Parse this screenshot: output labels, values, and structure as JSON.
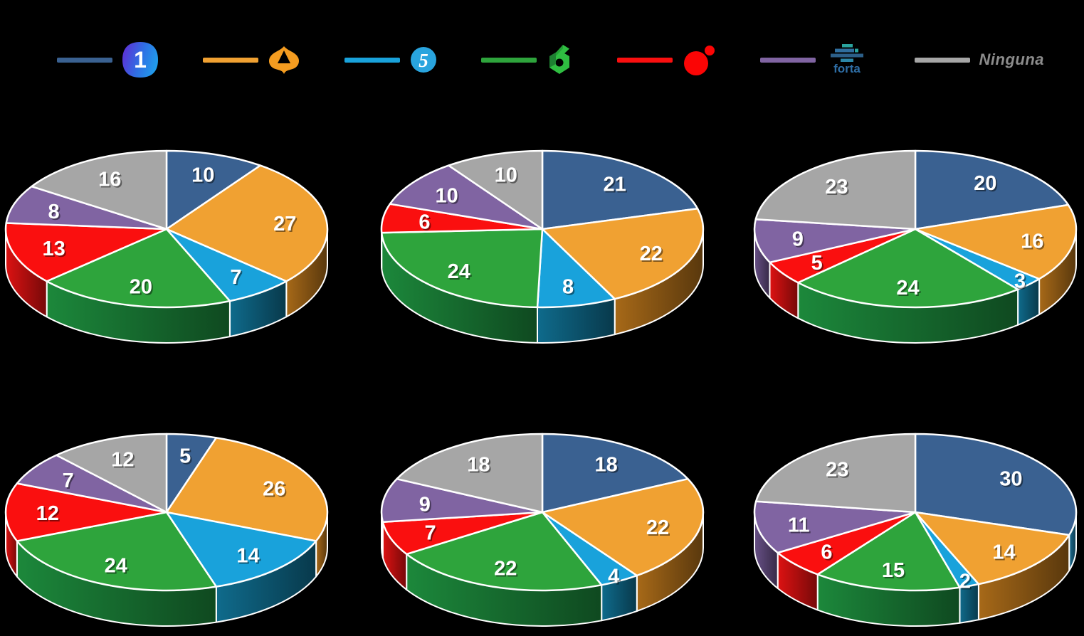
{
  "page": {
    "background": "#000000"
  },
  "legend": {
    "position": "top",
    "items": [
      {
        "id": "la1",
        "icon": "la1-logo",
        "swatch_color": "#3A6191",
        "logo_text": "1"
      },
      {
        "id": "antena3",
        "icon": "antena3-logo",
        "swatch_color": "#F0A132",
        "logo_text": ""
      },
      {
        "id": "telecinco",
        "icon": "telecinco-logo",
        "swatch_color": "#19A2DB",
        "logo_text": "5"
      },
      {
        "id": "lasexta",
        "icon": "lasexta-logo",
        "swatch_color": "#2EA43C",
        "logo_text": ""
      },
      {
        "id": "red-ball",
        "icon": "red-ball-logo",
        "swatch_color": "#FA0F0F",
        "logo_text": ""
      },
      {
        "id": "forta",
        "icon": "forta-logo",
        "swatch_color": "#8064A2",
        "logo_text": "forta"
      },
      {
        "id": "ninguna",
        "icon": "none",
        "swatch_color": "#A6A6A6",
        "label": "Ninguna"
      }
    ]
  },
  "chart_data": {
    "type": "pie",
    "style": "3d-exploded-none",
    "grid": "2 rows x 3 columns",
    "legend_position": "top",
    "data_labels": "values shown in white on slices",
    "start_angle": "12 o'clock, clockwise",
    "categories": [
      "la1",
      "antena3",
      "telecinco",
      "lasexta",
      "red-ball",
      "forta",
      "ninguna"
    ],
    "colors": [
      "#3A6191",
      "#F0A132",
      "#19A2DB",
      "#2EA43C",
      "#FA0F0F",
      "#8064A2",
      "#A6A6A6"
    ],
    "side_colors": [
      "#14506B",
      "#7C4E12",
      "#0B4F68",
      "#15652C",
      "#A40D0D",
      "#4C3B63",
      "#6E6E6E"
    ],
    "charts": [
      {
        "position": "top-left",
        "values": [
          10,
          27,
          7,
          20,
          13,
          8,
          16
        ]
      },
      {
        "position": "top-center",
        "values": [
          21,
          22,
          8,
          24,
          6,
          10,
          10
        ]
      },
      {
        "position": "top-right",
        "values": [
          20,
          16,
          3,
          24,
          5,
          9,
          23
        ]
      },
      {
        "position": "bottom-left",
        "values": [
          5,
          26,
          14,
          24,
          12,
          7,
          12
        ]
      },
      {
        "position": "bottom-center",
        "values": [
          18,
          22,
          4,
          22,
          7,
          9,
          18
        ]
      },
      {
        "position": "bottom-right",
        "values": [
          30,
          14,
          2,
          15,
          6,
          11,
          23
        ]
      }
    ]
  }
}
